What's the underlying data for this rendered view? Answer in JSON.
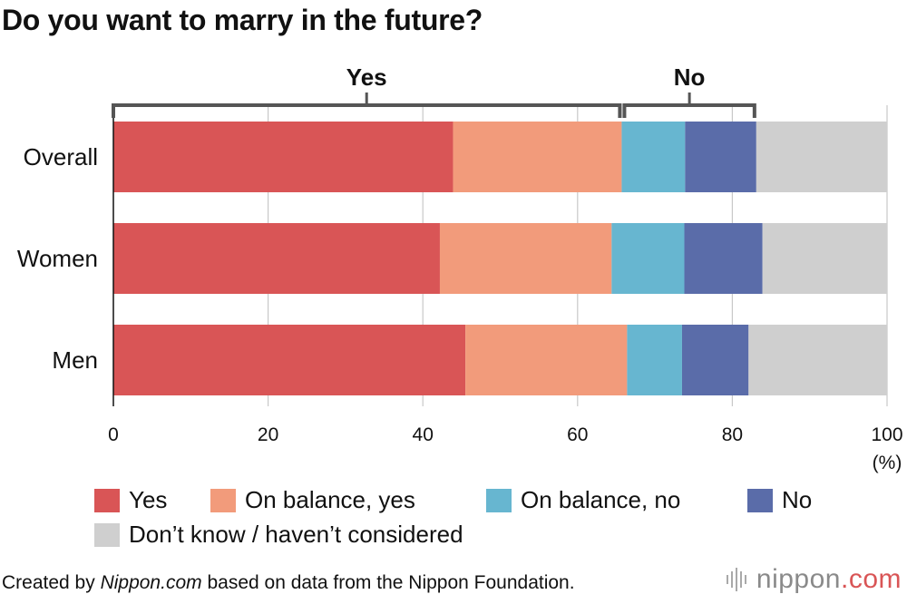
{
  "chart_data": {
    "type": "bar",
    "orientation": "horizontal",
    "stacked": true,
    "title": "Do you want to marry in the future?",
    "categories": [
      "Overall",
      "Women",
      "Men"
    ],
    "series": [
      {
        "name": "Yes",
        "color": "#d95556",
        "values": [
          43.9,
          42.2,
          45.5
        ]
      },
      {
        "name": "On balance, yes",
        "color": "#f29b7b",
        "values": [
          21.8,
          22.2,
          20.9
        ]
      },
      {
        "name": "On balance, no",
        "color": "#67b6d0",
        "values": [
          8.2,
          9.4,
          7.1
        ]
      },
      {
        "name": "No",
        "color": "#5a6ca9",
        "values": [
          9.2,
          10.1,
          8.6
        ]
      },
      {
        "name": "Don’t know / haven’t considered",
        "color": "#cfcfcf",
        "values": [
          16.9,
          16.1,
          17.9
        ]
      }
    ],
    "xlim": [
      0,
      100
    ],
    "xticks": [
      "0",
      "20",
      "40",
      "60",
      "80",
      "100"
    ],
    "unit_label": "(%)",
    "grid": true,
    "brackets": [
      {
        "label": "Yes",
        "from": 0,
        "to": 65.7
      },
      {
        "label": "No",
        "from": 65.7,
        "to": 83.1
      }
    ],
    "legend_position": "bottom"
  },
  "footer": {
    "prefix": "Created by ",
    "source_name": "Nippon.com",
    "suffix": " based on data from the Nippon Foundation.",
    "brand_a": "nippon",
    "brand_b": ".com"
  }
}
